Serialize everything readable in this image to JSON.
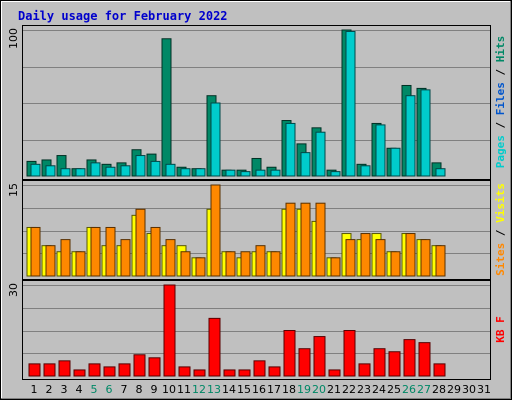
{
  "chart_data": {
    "title": "Daily usage for February 2022",
    "type": "bar",
    "categories": [
      "1",
      "2",
      "3",
      "4",
      "5",
      "6",
      "7",
      "8",
      "9",
      "10",
      "11",
      "12",
      "13",
      "14",
      "15",
      "16",
      "17",
      "18",
      "19",
      "20",
      "21",
      "22",
      "23",
      "24",
      "25",
      "26",
      "27",
      "28",
      "29",
      "30",
      "31"
    ],
    "weekend_days": [
      5,
      6,
      12,
      13,
      19,
      20,
      26,
      27
    ],
    "panels": [
      {
        "max_label": "100",
        "ymax": 100,
        "legend": [
          {
            "text": "Pages",
            "color": "#00cccc"
          },
          {
            "text": "Files",
            "color": "#0055cc"
          },
          {
            "text": "Hits",
            "color": "#008866"
          }
        ],
        "series": [
          {
            "name": "Hits",
            "color": "#008866",
            "values": [
              10,
              11,
              14,
              5,
              11,
              8,
              9,
              18,
              15,
              94,
              6,
              5,
              55,
              4,
              4,
              12,
              6,
              38,
              22,
              33,
              4,
              100,
              8,
              36,
              19,
              62,
              60,
              9,
              0,
              0,
              0
            ]
          },
          {
            "name": "Pages",
            "color": "#00cccc",
            "values": [
              8,
              7,
              5,
              5,
              9,
              6,
              7,
              14,
              10,
              8,
              5,
              5,
              50,
              4,
              3,
              4,
              4,
              36,
              16,
              30,
              3,
              99,
              7,
              35,
              19,
              55,
              59,
              5,
              0,
              0,
              0
            ]
          }
        ]
      },
      {
        "max_label": "15",
        "ymax": 15,
        "legend": [
          {
            "text": "Sites",
            "color": "#ff8800"
          },
          {
            "text": "/",
            "color": "#000000"
          },
          {
            "text": "Visits",
            "color": "#ffff00"
          }
        ],
        "series": [
          {
            "name": "Visits",
            "color": "#ffff00",
            "values": [
              8,
              5,
              4,
              4,
              8,
              5,
              5,
              10,
              7,
              5,
              5,
              3,
              11,
              4,
              3,
              4,
              4,
              11,
              11,
              9,
              3,
              7,
              6,
              7,
              4,
              7,
              6,
              5,
              0,
              0,
              0
            ]
          },
          {
            "name": "Sites",
            "color": "#ff8800",
            "values": [
              8,
              5,
              6,
              4,
              8,
              8,
              6,
              11,
              8,
              6,
              4,
              3,
              15,
              4,
              4,
              5,
              4,
              12,
              12,
              12,
              3,
              6,
              7,
              6,
              4,
              7,
              6,
              5,
              0,
              0,
              0
            ]
          }
        ]
      },
      {
        "max_label": "30",
        "ymax": 30,
        "legend": [
          {
            "text": "KB F",
            "color": "#ff0000"
          }
        ],
        "series": [
          {
            "name": "KB F",
            "color": "#ff0000",
            "values": [
              4,
              4,
              5,
              2,
              4,
              3,
              4,
              7,
              6,
              30,
              3,
              2,
              19,
              2,
              2,
              5,
              3,
              15,
              9,
              13,
              2,
              15,
              4,
              9,
              8,
              12,
              11,
              4,
              0,
              0,
              0
            ]
          }
        ]
      }
    ]
  }
}
